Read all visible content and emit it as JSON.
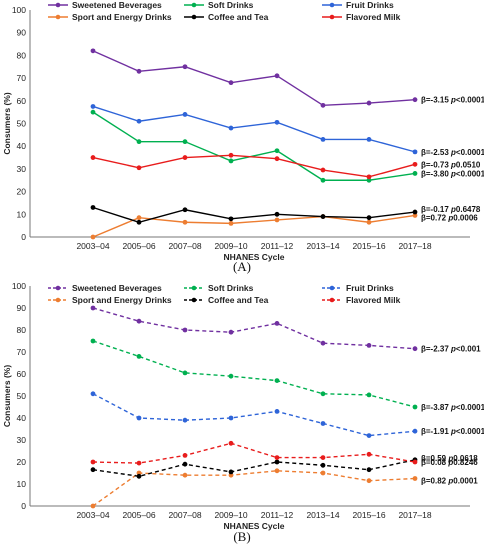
{
  "chart_data": [
    {
      "type": "line",
      "panel_label": "(A)",
      "xlabel": "NHANES Cycle",
      "ylabel": "Consumers (%)",
      "ylim": [
        0,
        100
      ],
      "yticks": [
        0,
        10,
        20,
        30,
        40,
        50,
        60,
        70,
        80,
        90,
        100
      ],
      "categories": [
        "2003–04",
        "2005–06",
        "2007–08",
        "2009–10",
        "2011–12",
        "2013–14",
        "2015–16",
        "2017–18"
      ],
      "line_style": "solid",
      "series": [
        {
          "name": "Sweetened Beverages",
          "color": "#7030a0",
          "values": [
            82,
            73,
            75,
            68,
            71,
            58,
            59,
            60.5
          ],
          "beta": "β=-3.15",
          "p_prefix": "p",
          "p_value": "<0.0001"
        },
        {
          "name": "Soft Drinks",
          "color": "#00b050",
          "values": [
            55,
            42,
            42,
            33.5,
            38,
            25,
            25,
            28
          ],
          "beta": "β=-3.80",
          "p_prefix": "p",
          "p_value": "<0.0001"
        },
        {
          "name": "Fruit Drinks",
          "color": "#2e64d8",
          "values": [
            57.5,
            51,
            54,
            48,
            50.5,
            43,
            43,
            37.5
          ],
          "beta": "β=-2.53",
          "p_prefix": "p",
          "p_value": "<0.0001"
        },
        {
          "name": "Sport and Energy Drinks",
          "color": "#ed7d31",
          "values": [
            0,
            8.5,
            6.5,
            6,
            7.5,
            9,
            6.5,
            9.5
          ],
          "beta": "β=0.72",
          "p_prefix": "p",
          "p_value": "0.0006"
        },
        {
          "name": "Coffee and Tea",
          "color": "#000000",
          "values": [
            13,
            6.5,
            12,
            8,
            10,
            9,
            8.5,
            11
          ],
          "beta": "β=-0.17",
          "p_prefix": "p",
          "p_value": "0.6478"
        },
        {
          "name": "Flavored Milk",
          "color": "#e81c1c",
          "values": [
            35,
            30.5,
            35,
            36,
            34.5,
            29.5,
            26.5,
            32
          ],
          "beta": "β=-0.73",
          "p_prefix": "p",
          "p_value": "0.0510"
        }
      ]
    },
    {
      "type": "line",
      "panel_label": "(B)",
      "xlabel": "NHANES Cycle",
      "ylabel": "Consumers (%)",
      "ylim": [
        0,
        100
      ],
      "yticks": [
        0,
        10,
        20,
        30,
        40,
        50,
        60,
        70,
        80,
        90,
        100
      ],
      "categories": [
        "2003–04",
        "2005–06",
        "2007–08",
        "2009–10",
        "2011–12",
        "2013–14",
        "2015–16",
        "2017–18"
      ],
      "line_style": "dashed",
      "series": [
        {
          "name": "Sweetened Beverages",
          "color": "#7030a0",
          "values": [
            90,
            84,
            80,
            79,
            83,
            74,
            73,
            71.5
          ],
          "beta": "β=-2.37",
          "p_prefix": "p",
          "p_value": "<0.001"
        },
        {
          "name": "Soft Drinks",
          "color": "#00b050",
          "values": [
            75,
            68,
            60.5,
            59,
            57,
            51,
            50.5,
            45
          ],
          "beta": "β=-3.87",
          "p_prefix": "p",
          "p_value": "<0.0001"
        },
        {
          "name": "Fruit Drinks",
          "color": "#2e64d8",
          "values": [
            51,
            40,
            39,
            40,
            43,
            37.5,
            32,
            34
          ],
          "beta": "β=-1.91",
          "p_prefix": "p",
          "p_value": "<0.0001"
        },
        {
          "name": "Sport and Energy Drinks",
          "color": "#ed7d31",
          "values": [
            0,
            15,
            14,
            14,
            16,
            15,
            11.5,
            12.5
          ],
          "beta": "β=0.82",
          "p_prefix": "p",
          "p_value": "0.0001"
        },
        {
          "name": "Coffee and Tea",
          "color": "#000000",
          "values": [
            16.5,
            13.5,
            19,
            15.5,
            20,
            18.5,
            16.5,
            21
          ],
          "beta": "β=0.08",
          "p_prefix": "p",
          "p_value": "0.8246"
        },
        {
          "name": "Flavored Milk",
          "color": "#e81c1c",
          "values": [
            20,
            19.5,
            23,
            28.5,
            22,
            22,
            23.5,
            20
          ],
          "beta": "β=0.59",
          "p_prefix": "p",
          "p_value": "0.0618"
        }
      ]
    }
  ]
}
